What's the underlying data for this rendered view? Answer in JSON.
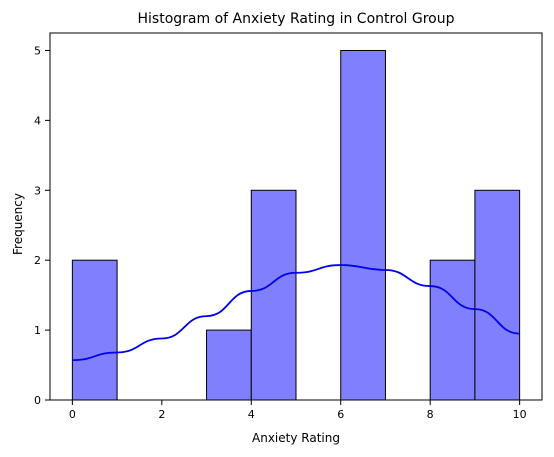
{
  "chart_data": {
    "type": "bar",
    "title": "Histogram of Anxiety Rating in Control Group",
    "xlabel": "Anxiety Rating",
    "ylabel": "Frequency",
    "xlim": [
      -0.5,
      10.5
    ],
    "ylim": [
      0,
      5.25
    ],
    "x_ticks": [
      0,
      2,
      4,
      6,
      8,
      10
    ],
    "y_ticks": [
      0,
      1,
      2,
      3,
      4,
      5
    ],
    "bins": [
      {
        "start": 0,
        "end": 1,
        "value": 2
      },
      {
        "start": 3,
        "end": 4,
        "value": 1
      },
      {
        "start": 4,
        "end": 5,
        "value": 3
      },
      {
        "start": 6,
        "end": 7,
        "value": 5
      },
      {
        "start": 8,
        "end": 9,
        "value": 2
      },
      {
        "start": 9,
        "end": 10,
        "value": 3
      }
    ],
    "kde_curve": {
      "x": [
        0,
        1,
        2,
        3,
        4,
        5,
        6,
        7,
        8,
        9,
        10
      ],
      "y": [
        0.57,
        0.68,
        0.88,
        1.2,
        1.56,
        1.82,
        1.93,
        1.86,
        1.63,
        1.3,
        0.95
      ]
    },
    "colors": {
      "bar_fill": "#8080ff",
      "bar_edge": "#000000",
      "kde_line": "#0000ee",
      "axes": "#000000"
    },
    "grid": false
  }
}
